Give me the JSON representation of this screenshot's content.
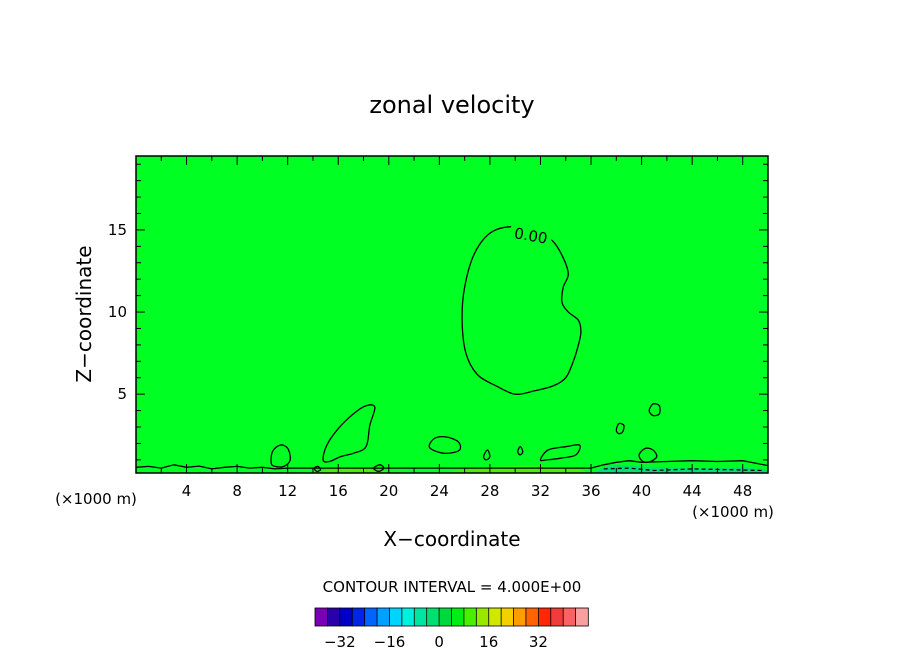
{
  "chart_data": {
    "type": "contour",
    "title": "zonal velocity",
    "xlabel": "X−coordinate",
    "ylabel": "Z−coordinate",
    "x_unit_left": "(×1000 m)",
    "x_unit_right": "(×1000 m)",
    "xlim": [
      0,
      50
    ],
    "ylim": [
      0.2,
      19.5
    ],
    "xticks": [
      4,
      8,
      12,
      16,
      20,
      24,
      28,
      32,
      36,
      40,
      44,
      48
    ],
    "yticks": [
      5,
      10,
      15
    ],
    "contour_interval_text": "CONTOUR INTERVAL = 4.000E+00",
    "contour_label": "0.00",
    "background_color": "#00ff22",
    "colorbar": {
      "colors": [
        "#7a00b4",
        "#2a00a8",
        "#0000c8",
        "#0024e8",
        "#0064ff",
        "#00a0ff",
        "#00d4ff",
        "#00f0dc",
        "#00e6a0",
        "#00e070",
        "#00d840",
        "#00ee10",
        "#48f000",
        "#9ae800",
        "#d0e800",
        "#f4d000",
        "#ff9c00",
        "#ff6400",
        "#ff2800",
        "#f03c3c",
        "#f86464",
        "#f8a0a0"
      ],
      "tick_values": [
        -32,
        -16,
        0,
        16,
        32
      ],
      "tick_labels": [
        "−32",
        "−16",
        "0",
        "16",
        "32"
      ],
      "min": -40,
      "max": 48
    },
    "main_zero_contour": [
      [
        30.2,
        15.2
      ],
      [
        28.2,
        14.9
      ],
      [
        26.8,
        13.6
      ],
      [
        26.0,
        11.5
      ],
      [
        25.8,
        9.5
      ],
      [
        26.1,
        7.5
      ],
      [
        27.0,
        6.2
      ],
      [
        28.5,
        5.5
      ],
      [
        30.0,
        5.0
      ],
      [
        31.5,
        5.2
      ],
      [
        33.0,
        5.5
      ],
      [
        34.0,
        6.0
      ],
      [
        34.6,
        7.0
      ],
      [
        35.0,
        8.0
      ],
      [
        35.2,
        8.8
      ],
      [
        35.0,
        9.5
      ],
      [
        34.2,
        10.0
      ],
      [
        33.7,
        10.6
      ],
      [
        33.8,
        11.5
      ],
      [
        34.2,
        12.3
      ],
      [
        33.8,
        13.3
      ],
      [
        33.0,
        14.3
      ],
      [
        31.9,
        14.8
      ]
    ],
    "small_zero_contours": [
      [
        [
          14.8,
          1.0
        ],
        [
          15.1,
          1.9
        ],
        [
          16.0,
          2.9
        ],
        [
          17.2,
          3.8
        ],
        [
          18.2,
          4.3
        ],
        [
          18.9,
          4.2
        ],
        [
          18.5,
          3.1
        ],
        [
          18.2,
          1.8
        ],
        [
          17.2,
          1.4
        ],
        [
          16.2,
          1.2
        ],
        [
          15.3,
          0.9
        ]
      ],
      [
        [
          10.7,
          0.8
        ],
        [
          10.8,
          1.5
        ],
        [
          11.4,
          1.9
        ],
        [
          12.0,
          1.7
        ],
        [
          12.2,
          1.0
        ],
        [
          11.7,
          0.6
        ],
        [
          11.0,
          0.6
        ]
      ],
      [
        [
          23.2,
          1.8
        ],
        [
          23.6,
          2.3
        ],
        [
          24.5,
          2.4
        ],
        [
          25.5,
          2.1
        ],
        [
          25.6,
          1.6
        ],
        [
          24.7,
          1.4
        ],
        [
          23.8,
          1.5
        ]
      ],
      [
        [
          32.0,
          1.0
        ],
        [
          32.6,
          1.6
        ],
        [
          34.0,
          1.8
        ],
        [
          35.1,
          1.9
        ],
        [
          34.8,
          1.3
        ],
        [
          33.6,
          1.1
        ],
        [
          32.5,
          1.0
        ]
      ],
      [
        [
          27.5,
          1.2
        ],
        [
          27.8,
          1.6
        ],
        [
          28.0,
          1.2
        ],
        [
          27.7,
          1.0
        ]
      ],
      [
        [
          30.2,
          1.5
        ],
        [
          30.4,
          1.8
        ],
        [
          30.6,
          1.5
        ],
        [
          30.4,
          1.3
        ]
      ],
      [
        [
          38.0,
          2.8
        ],
        [
          38.2,
          3.2
        ],
        [
          38.6,
          3.1
        ],
        [
          38.5,
          2.7
        ],
        [
          38.2,
          2.6
        ]
      ],
      [
        [
          40.6,
          4.0
        ],
        [
          40.9,
          4.4
        ],
        [
          41.4,
          4.3
        ],
        [
          41.4,
          3.8
        ],
        [
          40.9,
          3.7
        ]
      ],
      [
        [
          39.8,
          1.3
        ],
        [
          40.3,
          1.7
        ],
        [
          40.9,
          1.6
        ],
        [
          41.2,
          1.2
        ],
        [
          40.7,
          0.9
        ],
        [
          40.1,
          0.9
        ]
      ],
      [
        [
          18.8,
          0.5
        ],
        [
          19.3,
          0.7
        ],
        [
          19.6,
          0.5
        ],
        [
          19.2,
          0.3
        ]
      ],
      [
        [
          14.1,
          0.5
        ],
        [
          14.4,
          0.6
        ],
        [
          14.6,
          0.4
        ],
        [
          14.3,
          0.3
        ]
      ]
    ],
    "bottom_zero_contour": [
      [
        0,
        0.55
      ],
      [
        1,
        0.6
      ],
      [
        2,
        0.5
      ],
      [
        3,
        0.7
      ],
      [
        4,
        0.55
      ],
      [
        5,
        0.62
      ],
      [
        6,
        0.45
      ],
      [
        7,
        0.55
      ],
      [
        8,
        0.6
      ],
      [
        9,
        0.5
      ],
      [
        10,
        0.55
      ],
      [
        11,
        0.45
      ],
      [
        12,
        0.5
      ],
      [
        36,
        0.5
      ],
      [
        37,
        0.7
      ],
      [
        38,
        0.85
      ],
      [
        39,
        0.95
      ],
      [
        40,
        0.85
      ],
      [
        42,
        0.9
      ],
      [
        44,
        0.95
      ],
      [
        46,
        0.9
      ],
      [
        48,
        0.95
      ],
      [
        50,
        0.65
      ]
    ],
    "near_surface_patches": [
      {
        "color": "#48f000",
        "points": [
          [
            13.5,
            0.2
          ],
          [
            14.5,
            0.32
          ],
          [
            16,
            0.45
          ],
          [
            18,
            0.5
          ],
          [
            19,
            0.4
          ],
          [
            20,
            0.3
          ],
          [
            21.5,
            0.22
          ],
          [
            21.5,
            0.2
          ]
        ]
      },
      {
        "color": "#48f000",
        "points": [
          [
            24,
            0.2
          ],
          [
            25,
            0.3
          ],
          [
            26.5,
            0.45
          ],
          [
            28,
            0.55
          ],
          [
            30,
            0.62
          ],
          [
            32,
            0.6
          ],
          [
            34,
            0.55
          ],
          [
            35,
            0.45
          ],
          [
            35.5,
            0.3
          ],
          [
            35.5,
            0.2
          ]
        ]
      },
      {
        "color": "#00e070",
        "points": [
          [
            36.2,
            0.2
          ],
          [
            37,
            0.55
          ],
          [
            38,
            0.7
          ],
          [
            40,
            0.6
          ],
          [
            42,
            0.55
          ],
          [
            44,
            0.5
          ],
          [
            46,
            0.5
          ],
          [
            48,
            0.55
          ],
          [
            50,
            0.4
          ],
          [
            50,
            0.2
          ]
        ]
      }
    ],
    "dashed_contours": [
      [
        [
          37,
          0.45
        ],
        [
          39,
          0.5
        ],
        [
          41,
          0.35
        ],
        [
          44,
          0.45
        ],
        [
          47,
          0.4
        ],
        [
          49.5,
          0.35
        ]
      ]
    ]
  }
}
